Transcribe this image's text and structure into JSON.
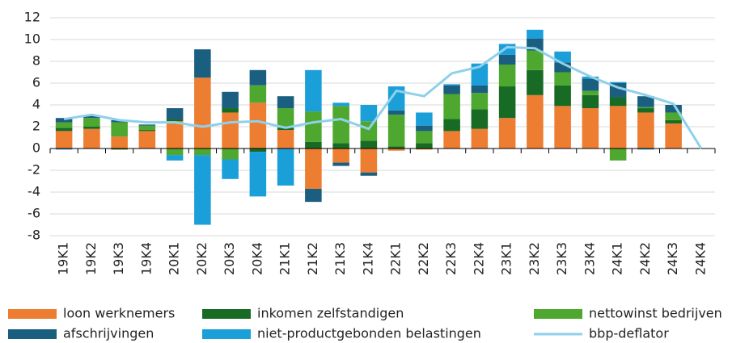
{
  "chart_data": {
    "type": "bar",
    "stacked": true,
    "categories": [
      "19K1",
      "19K2",
      "19K3",
      "19K4",
      "20K1",
      "20K2",
      "20K3",
      "20K4",
      "21K1",
      "21K2",
      "21K3",
      "21K4",
      "22K1",
      "22K2",
      "22K3",
      "22K4",
      "23K1",
      "23K2",
      "23K3",
      "23K4",
      "24K1",
      "24K2",
      "24K3",
      "24K4"
    ],
    "series": [
      {
        "name": "loon werknemers",
        "color": "#ed7d31",
        "values": [
          1.6,
          1.8,
          1.1,
          1.6,
          2.5,
          6.5,
          3.3,
          4.2,
          1.7,
          -3.7,
          -1.3,
          -2.2,
          -0.2,
          -0.1,
          1.6,
          1.8,
          2.8,
          4.9,
          3.9,
          3.7,
          3.9,
          3.3,
          2.3,
          null
        ]
      },
      {
        "name": "inkomen zelfstandigen",
        "color": "#176b25",
        "values": [
          0.3,
          0.2,
          -0.1,
          0.1,
          0.2,
          0,
          0.4,
          -0.3,
          0.2,
          0.6,
          0.5,
          0.7,
          0.2,
          0.5,
          1.1,
          1.8,
          2.9,
          2.3,
          1.9,
          1.2,
          0.8,
          0.4,
          0.3,
          null
        ]
      },
      {
        "name": "nettowinst bedrijven",
        "color": "#4ea72e",
        "values": [
          0.5,
          0.8,
          1.3,
          0.4,
          -0.6,
          -0.6,
          -1.0,
          1.6,
          1.8,
          2.8,
          3.4,
          1.8,
          2.9,
          1.1,
          2.3,
          1.5,
          2.0,
          1.8,
          1.2,
          0.4,
          -1.1,
          0.1,
          0.7,
          null
        ]
      },
      {
        "name": "afschrijvingen",
        "color": "#1b5f80",
        "values": [
          0.4,
          0.2,
          0.2,
          0.1,
          1.0,
          2.6,
          1.5,
          1.4,
          1.1,
          -1.2,
          -0.3,
          -0.3,
          0.4,
          0.5,
          0.8,
          0.7,
          0.9,
          1.1,
          0.9,
          1.1,
          1.3,
          1.0,
          0.7,
          null
        ]
      },
      {
        "name": "niet-productgebonden belastingen",
        "color": "#1a9fd9",
        "values": [
          -0.1,
          0,
          0,
          0,
          -0.5,
          -6.4,
          -1.8,
          -4.1,
          -3.4,
          3.8,
          0.3,
          1.5,
          2.2,
          1.2,
          0.1,
          2.0,
          1.0,
          0.8,
          1.0,
          0.2,
          0.1,
          -0.1,
          0,
          null
        ]
      },
      {
        "name": "bbp-deflator",
        "type": "line",
        "color": "#8fd0ea",
        "values": [
          2.7,
          3.1,
          2.6,
          2.4,
          2.4,
          2.0,
          2.4,
          2.5,
          1.9,
          2.4,
          2.7,
          1.8,
          5.3,
          4.8,
          6.9,
          7.5,
          9.3,
          9.2,
          7.8,
          6.6,
          5.6,
          4.9,
          4.1,
          0
        ]
      }
    ],
    "ylim": [
      -8,
      12
    ],
    "yticks": [
      -8,
      -6,
      -4,
      -2,
      0,
      2,
      4,
      6,
      8,
      10,
      12
    ],
    "grid": true,
    "legend": "bottom"
  }
}
